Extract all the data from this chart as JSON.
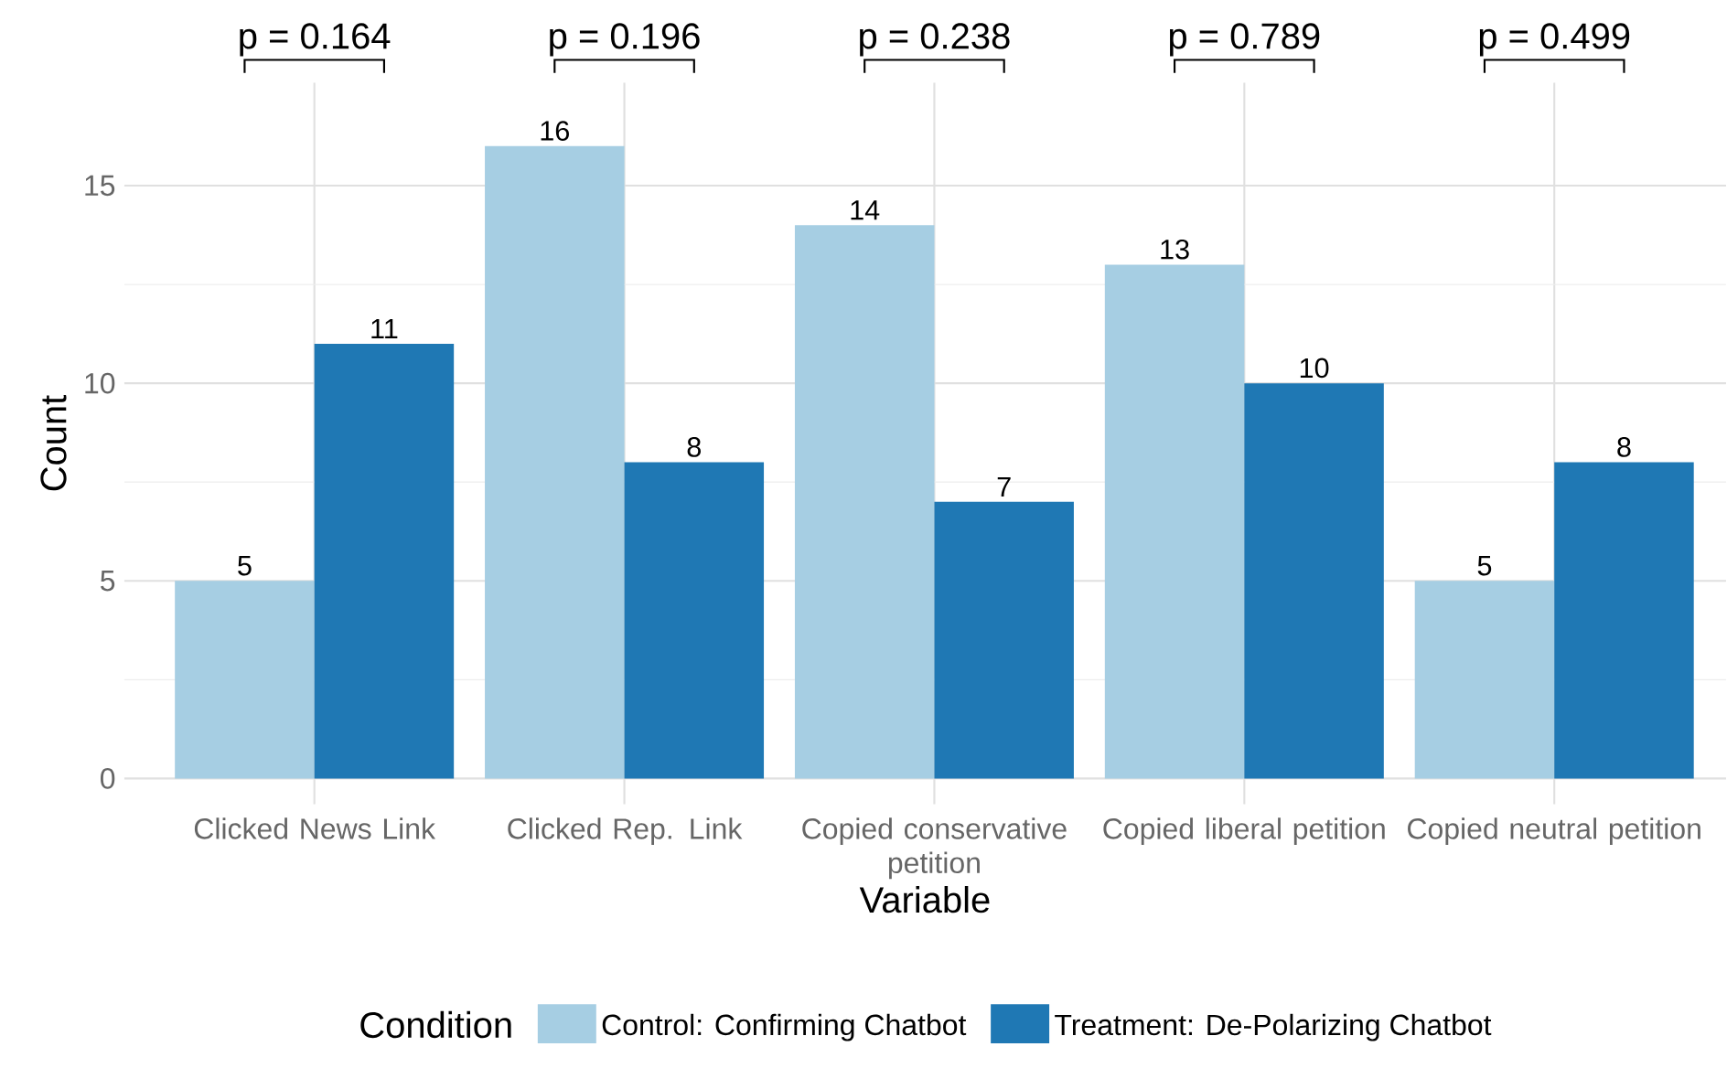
{
  "chart_data": {
    "type": "bar",
    "categories": [
      "Clicked News Link",
      "Clicked Rep. Link",
      "Copied conservative petition",
      "Copied liberal petition",
      "Copied neutral petition"
    ],
    "series": [
      {
        "name": "Control: Confirming Chatbot",
        "color": "#a6cee3",
        "values": [
          5,
          16,
          14,
          13,
          5
        ]
      },
      {
        "name": "Treatment: De-Polarizing Chatbot",
        "color": "#1f78b4",
        "values": [
          11,
          8,
          7,
          10,
          8
        ]
      }
    ],
    "xlabel": "Variable",
    "ylabel": "Count",
    "legend_title": "Condition",
    "ylim": [
      -0.65,
      17.6
    ],
    "yticks": [
      0,
      5,
      10,
      15
    ],
    "grid": true,
    "legend": "bottom",
    "data_labels": true,
    "annotations": [
      "p = 0.164",
      "p = 0.196",
      "p = 0.238",
      "p = 0.789",
      "p = 0.499"
    ]
  }
}
